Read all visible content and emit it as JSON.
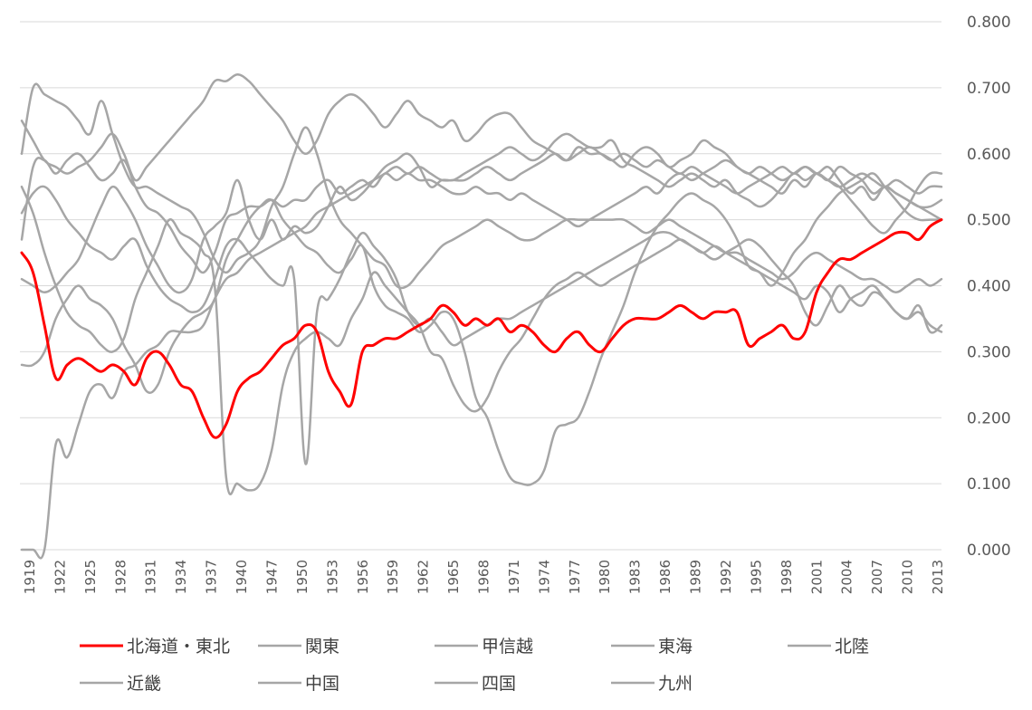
{
  "colors": {
    "highlight": "#ff0000",
    "other": "#a6a6a6",
    "grid": "#d9d9d9",
    "text": "#595959"
  },
  "chart_data": {
    "type": "line",
    "title": "",
    "xlabel": "",
    "ylabel": "",
    "ylim": [
      0,
      0.8
    ],
    "yticks": [
      "0.000",
      "0.100",
      "0.200",
      "0.300",
      "0.400",
      "0.500",
      "0.600",
      "0.700",
      "0.800"
    ],
    "xticks": [
      "1919",
      "1922",
      "1925",
      "1928",
      "1931",
      "1934",
      "1937",
      "1940",
      "1947",
      "1950",
      "1953",
      "1956",
      "1959",
      "1962",
      "1965",
      "1968",
      "1971",
      "1974",
      "1977",
      "1980",
      "1983",
      "1986",
      "1989",
      "1992",
      "1995",
      "1998",
      "2001",
      "2004",
      "2007",
      "2010",
      "2013"
    ],
    "grid": true,
    "legend_position": "bottom",
    "series": [
      {
        "name": "北海道・東北",
        "color": "#ff0000",
        "highlight": true,
        "values": [
          0.45,
          0.42,
          0.34,
          0.26,
          0.28,
          0.29,
          0.28,
          0.27,
          0.28,
          0.27,
          0.25,
          0.29,
          0.3,
          0.28,
          0.25,
          0.24,
          0.2,
          0.17,
          0.19,
          0.24,
          0.26,
          0.27,
          0.29,
          0.31,
          0.32,
          0.34,
          0.33,
          0.27,
          0.24,
          0.22,
          0.3,
          0.31,
          0.32,
          0.32,
          0.33,
          0.34,
          0.35,
          0.37,
          0.36,
          0.34,
          0.35,
          0.34,
          0.35,
          0.33,
          0.34,
          0.33,
          0.31,
          0.3,
          0.32,
          0.33,
          0.31,
          0.3,
          0.32,
          0.34,
          0.35,
          0.35,
          0.35,
          0.36,
          0.37,
          0.36,
          0.35,
          0.36,
          0.36,
          0.36,
          0.31,
          0.32,
          0.33,
          0.34,
          0.32,
          0.33,
          0.39,
          0.42,
          0.44,
          0.44,
          0.45,
          0.46,
          0.47,
          0.48,
          0.48,
          0.47,
          0.49,
          0.5
        ]
      },
      {
        "name": "関東",
        "color": "#a6a6a6",
        "values": [
          0.65,
          0.62,
          0.59,
          0.58,
          0.57,
          0.58,
          0.59,
          0.61,
          0.63,
          0.6,
          0.56,
          0.58,
          0.6,
          0.62,
          0.64,
          0.66,
          0.68,
          0.71,
          0.71,
          0.72,
          0.71,
          0.69,
          0.67,
          0.65,
          0.62,
          0.6,
          0.62,
          0.66,
          0.68,
          0.69,
          0.68,
          0.66,
          0.64,
          0.66,
          0.68,
          0.66,
          0.65,
          0.64,
          0.65,
          0.62,
          0.63,
          0.65,
          0.66,
          0.66,
          0.64,
          0.62,
          0.61,
          0.6,
          0.59,
          0.61,
          0.6,
          0.6,
          0.59,
          0.58,
          0.6,
          0.61,
          0.6,
          0.58,
          0.59,
          0.6,
          0.62,
          0.61,
          0.6,
          0.58,
          0.57,
          0.56,
          0.55,
          0.54,
          0.56,
          0.55,
          0.57,
          0.56,
          0.58,
          0.57,
          0.56,
          0.54,
          0.55,
          0.54,
          0.53,
          0.52,
          0.51,
          0.5
        ]
      },
      {
        "name": "甲信越",
        "color": "#a6a6a6",
        "values": [
          0.28,
          0.28,
          0.3,
          0.35,
          0.38,
          0.4,
          0.38,
          0.37,
          0.35,
          0.31,
          0.28,
          0.24,
          0.25,
          0.3,
          0.33,
          0.35,
          0.36,
          0.38,
          0.44,
          0.47,
          0.5,
          0.52,
          0.53,
          0.5,
          0.48,
          0.46,
          0.45,
          0.43,
          0.42,
          0.44,
          0.46,
          0.4,
          0.37,
          0.36,
          0.35,
          0.33,
          0.34,
          0.36,
          0.35,
          0.3,
          0.23,
          0.2,
          0.15,
          0.11,
          0.1,
          0.1,
          0.12,
          0.18,
          0.19,
          0.2,
          0.24,
          0.29,
          0.33,
          0.37,
          0.42,
          0.46,
          0.49,
          0.51,
          0.53,
          0.54,
          0.53,
          0.52,
          0.5,
          0.47,
          0.43,
          0.42,
          0.4,
          0.42,
          0.45,
          0.47,
          0.5,
          0.52,
          0.54,
          0.55,
          0.56,
          0.57,
          0.55,
          0.53,
          0.51,
          0.5,
          0.5,
          0.5
        ]
      },
      {
        "name": "東海",
        "color": "#a6a6a6",
        "values": [
          0.47,
          0.58,
          0.59,
          0.57,
          0.59,
          0.6,
          0.58,
          0.56,
          0.57,
          0.59,
          0.55,
          0.52,
          0.51,
          0.49,
          0.46,
          0.44,
          0.42,
          0.45,
          0.5,
          0.51,
          0.52,
          0.52,
          0.53,
          0.52,
          0.53,
          0.53,
          0.55,
          0.56,
          0.54,
          0.55,
          0.56,
          0.55,
          0.57,
          0.56,
          0.57,
          0.56,
          0.56,
          0.55,
          0.54,
          0.54,
          0.55,
          0.54,
          0.54,
          0.53,
          0.54,
          0.53,
          0.52,
          0.51,
          0.5,
          0.49,
          0.5,
          0.51,
          0.52,
          0.53,
          0.54,
          0.55,
          0.54,
          0.56,
          0.57,
          0.56,
          0.57,
          0.58,
          0.59,
          0.58,
          0.57,
          0.58,
          0.57,
          0.56,
          0.57,
          0.58,
          0.57,
          0.58,
          0.56,
          0.54,
          0.55,
          0.53,
          0.55,
          0.54,
          0.53,
          0.52,
          0.52,
          0.53
        ]
      },
      {
        "name": "北陸",
        "color": "#a6a6a6",
        "values": [
          0.41,
          0.4,
          0.39,
          0.4,
          0.42,
          0.44,
          0.48,
          0.52,
          0.55,
          0.53,
          0.5,
          0.46,
          0.43,
          0.4,
          0.39,
          0.41,
          0.47,
          0.49,
          0.51,
          0.56,
          0.5,
          0.47,
          0.5,
          0.47,
          0.49,
          0.48,
          0.49,
          0.52,
          0.55,
          0.53,
          0.54,
          0.56,
          0.58,
          0.59,
          0.6,
          0.58,
          0.55,
          0.56,
          0.56,
          0.57,
          0.58,
          0.59,
          0.6,
          0.61,
          0.6,
          0.59,
          0.6,
          0.62,
          0.63,
          0.62,
          0.61,
          0.61,
          0.62,
          0.59,
          0.58,
          0.57,
          0.56,
          0.55,
          0.56,
          0.57,
          0.56,
          0.55,
          0.56,
          0.54,
          0.53,
          0.52,
          0.53,
          0.55,
          0.57,
          0.56,
          0.57,
          0.56,
          0.55,
          0.53,
          0.51,
          0.49,
          0.48,
          0.5,
          0.52,
          0.55,
          0.57,
          0.57
        ]
      },
      {
        "name": "近畿",
        "color": "#a6a6a6",
        "values": [
          0.6,
          0.7,
          0.69,
          0.68,
          0.67,
          0.65,
          0.63,
          0.68,
          0.63,
          0.58,
          0.55,
          0.55,
          0.54,
          0.53,
          0.52,
          0.51,
          0.48,
          0.44,
          0.42,
          0.44,
          0.45,
          0.47,
          0.52,
          0.55,
          0.6,
          0.64,
          0.6,
          0.54,
          0.5,
          0.48,
          0.46,
          0.44,
          0.43,
          0.4,
          0.4,
          0.42,
          0.44,
          0.46,
          0.47,
          0.48,
          0.49,
          0.5,
          0.49,
          0.48,
          0.47,
          0.47,
          0.48,
          0.49,
          0.5,
          0.5,
          0.5,
          0.5,
          0.5,
          0.5,
          0.49,
          0.48,
          0.49,
          0.5,
          0.49,
          0.48,
          0.47,
          0.46,
          0.45,
          0.45,
          0.44,
          0.43,
          0.42,
          0.41,
          0.42,
          0.44,
          0.45,
          0.44,
          0.43,
          0.42,
          0.41,
          0.41,
          0.4,
          0.39,
          0.4,
          0.41,
          0.4,
          0.41
        ]
      },
      {
        "name": "中国",
        "color": "#a6a6a6",
        "values": [
          0.51,
          0.54,
          0.55,
          0.53,
          0.5,
          0.48,
          0.46,
          0.45,
          0.44,
          0.46,
          0.47,
          0.43,
          0.4,
          0.38,
          0.37,
          0.36,
          0.37,
          0.41,
          0.46,
          0.47,
          0.45,
          0.43,
          0.41,
          0.4,
          0.41,
          0.13,
          0.36,
          0.38,
          0.41,
          0.45,
          0.48,
          0.46,
          0.44,
          0.41,
          0.36,
          0.34,
          0.35,
          0.33,
          0.31,
          0.32,
          0.33,
          0.34,
          0.35,
          0.35,
          0.36,
          0.37,
          0.38,
          0.39,
          0.4,
          0.41,
          0.42,
          0.43,
          0.44,
          0.45,
          0.46,
          0.47,
          0.48,
          0.48,
          0.47,
          0.46,
          0.45,
          0.46,
          0.45,
          0.44,
          0.43,
          0.42,
          0.41,
          0.4,
          0.39,
          0.38,
          0.4,
          0.39,
          0.36,
          0.38,
          0.39,
          0.4,
          0.38,
          0.36,
          0.35,
          0.37,
          0.33,
          0.34
        ]
      },
      {
        "name": "四国",
        "color": "#a6a6a6",
        "values": [
          0.0,
          0.0,
          0.0,
          0.16,
          0.14,
          0.19,
          0.24,
          0.25,
          0.23,
          0.27,
          0.28,
          0.3,
          0.31,
          0.33,
          0.33,
          0.33,
          0.34,
          0.38,
          0.41,
          0.42,
          0.44,
          0.45,
          0.46,
          0.47,
          0.48,
          0.49,
          0.51,
          0.52,
          0.53,
          0.54,
          0.55,
          0.56,
          0.57,
          0.58,
          0.57,
          0.58,
          0.57,
          0.56,
          0.56,
          0.56,
          0.57,
          0.58,
          0.57,
          0.56,
          0.57,
          0.58,
          0.59,
          0.6,
          0.59,
          0.6,
          0.61,
          0.6,
          0.59,
          0.6,
          0.59,
          0.58,
          0.59,
          0.58,
          0.57,
          0.58,
          0.57,
          0.56,
          0.55,
          0.54,
          0.55,
          0.56,
          0.57,
          0.58,
          0.57,
          0.58,
          0.57,
          0.56,
          0.55,
          0.56,
          0.57,
          0.56,
          0.55,
          0.56,
          0.55,
          0.54,
          0.55,
          0.55
        ]
      },
      {
        "name": "九州",
        "color": "#a6a6a6",
        "values": [
          0.55,
          0.51,
          0.45,
          0.4,
          0.36,
          0.34,
          0.33,
          0.31,
          0.3,
          0.32,
          0.38,
          0.42,
          0.46,
          0.5,
          0.48,
          0.47,
          0.45,
          0.4,
          0.11,
          0.1,
          0.09,
          0.1,
          0.15,
          0.25,
          0.3,
          0.32,
          0.33,
          0.32,
          0.31,
          0.35,
          0.38,
          0.42,
          0.4,
          0.38,
          0.36,
          0.34,
          0.3,
          0.29,
          0.25,
          0.22,
          0.21,
          0.23,
          0.27,
          0.3,
          0.32,
          0.35,
          0.38,
          0.4,
          0.41,
          0.42,
          0.41,
          0.4,
          0.41,
          0.42,
          0.43,
          0.44,
          0.45,
          0.46,
          0.47,
          0.46,
          0.45,
          0.44,
          0.45,
          0.46,
          0.47,
          0.46,
          0.44,
          0.42,
          0.4,
          0.36,
          0.34,
          0.37,
          0.4,
          0.38,
          0.37,
          0.39,
          0.38,
          0.36,
          0.35,
          0.36,
          0.34,
          0.33
        ]
      }
    ]
  }
}
